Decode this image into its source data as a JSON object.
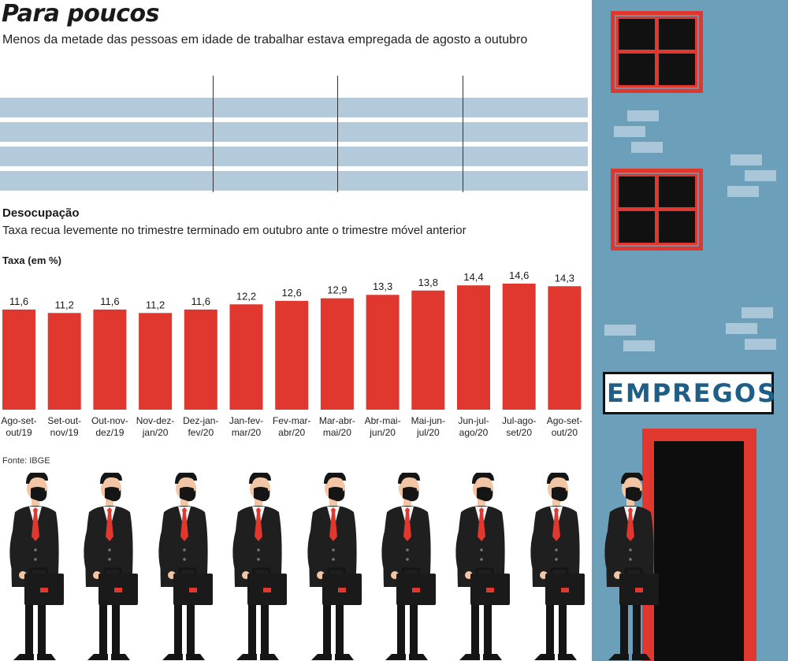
{
  "header": {
    "title": "Para poucos",
    "subtitle": "Menos da metade das pessoas em idade de trabalhar estava empregada de agosto a outubro"
  },
  "section": {
    "title": "Desocupação",
    "subtitle": "Taxa recua levemente no trimestre terminado em outubro ante o trimestre móvel anterior"
  },
  "sign": {
    "text": "EMPREGOS"
  },
  "footer": {
    "source": "Fonte: IBGE"
  },
  "colors": {
    "bar": "#e0382f",
    "building": "#6c9fba",
    "stripe": "#b2cad9",
    "window_frame": "#e0382f"
  },
  "chart_data": {
    "type": "bar",
    "title": "Desocupação",
    "ylabel": "Taxa (em %)",
    "xlabel": "",
    "ylim": [
      0,
      14.6
    ],
    "categories": [
      [
        "Ago-set-",
        "out/19"
      ],
      [
        "Set-out-",
        "nov/19"
      ],
      [
        "Out-nov-",
        "dez/19"
      ],
      [
        "Nov-dez-",
        "jan/20"
      ],
      [
        "Dez-jan-",
        "fev/20"
      ],
      [
        "Jan-fev-",
        "mar/20"
      ],
      [
        "Fev-mar-",
        "abr/20"
      ],
      [
        "Mar-abr-",
        "mai/20"
      ],
      [
        "Abr-mai-",
        "jun/20"
      ],
      [
        "Mai-jun-",
        "jul/20"
      ],
      [
        "Jun-jul-",
        "ago/20"
      ],
      [
        "Jul-ago-",
        "set/20"
      ],
      [
        "Ago-set-",
        "out/20"
      ]
    ],
    "values": [
      11.6,
      11.2,
      11.6,
      11.2,
      11.6,
      12.2,
      12.6,
      12.9,
      13.3,
      13.8,
      14.4,
      14.6,
      14.3
    ],
    "value_labels": [
      "11,6",
      "11,2",
      "11,6",
      "11,2",
      "11,6",
      "12,2",
      "12,6",
      "12,9",
      "13,3",
      "13,8",
      "14,4",
      "14,6",
      "14,3"
    ]
  }
}
